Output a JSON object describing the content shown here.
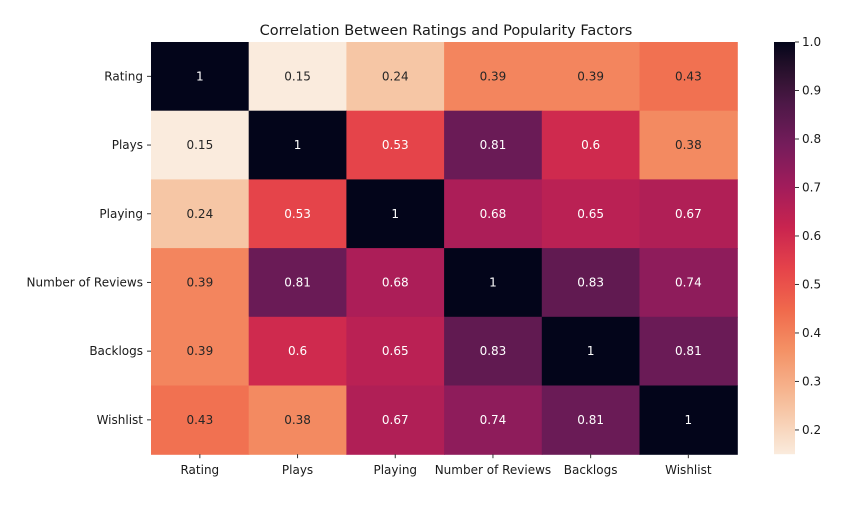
{
  "chart_data": {
    "type": "heatmap",
    "title": "Correlation Between Ratings and Popularity Factors",
    "xlabel": "",
    "ylabel": "",
    "rows": [
      "Rating",
      "Plays",
      "Playing",
      "Number of Reviews",
      "Backlogs",
      "Wishlist"
    ],
    "columns": [
      "Rating",
      "Plays",
      "Playing",
      "Number of Reviews",
      "Backlogs",
      "Wishlist"
    ],
    "values": [
      [
        1,
        0.15,
        0.24,
        0.39,
        0.39,
        0.43
      ],
      [
        0.15,
        1,
        0.53,
        0.81,
        0.6,
        0.38
      ],
      [
        0.24,
        0.53,
        1,
        0.68,
        0.65,
        0.67
      ],
      [
        0.39,
        0.81,
        0.68,
        1,
        0.83,
        0.74
      ],
      [
        0.39,
        0.6,
        0.65,
        0.83,
        1,
        0.81
      ],
      [
        0.43,
        0.38,
        0.67,
        0.74,
        0.81,
        1
      ]
    ],
    "labels": [
      [
        "1",
        "0.15",
        "0.24",
        "0.39",
        "0.39",
        "0.43"
      ],
      [
        "0.15",
        "1",
        "0.53",
        "0.81",
        "0.6",
        "0.38"
      ],
      [
        "0.24",
        "0.53",
        "1",
        "0.68",
        "0.65",
        "0.67"
      ],
      [
        "0.39",
        "0.81",
        "0.68",
        "1",
        "0.83",
        "0.74"
      ],
      [
        "0.39",
        "0.6",
        "0.65",
        "0.83",
        "1",
        "0.81"
      ],
      [
        "0.43",
        "0.38",
        "0.67",
        "0.74",
        "0.81",
        "1"
      ]
    ],
    "colorbar": {
      "range": [
        0.15,
        1.0
      ],
      "ticks": [
        "1.0",
        "0.9",
        "0.8",
        "0.7",
        "0.6",
        "0.5",
        "0.4",
        "0.3",
        "0.2"
      ],
      "colormap": "rocket_r"
    }
  }
}
